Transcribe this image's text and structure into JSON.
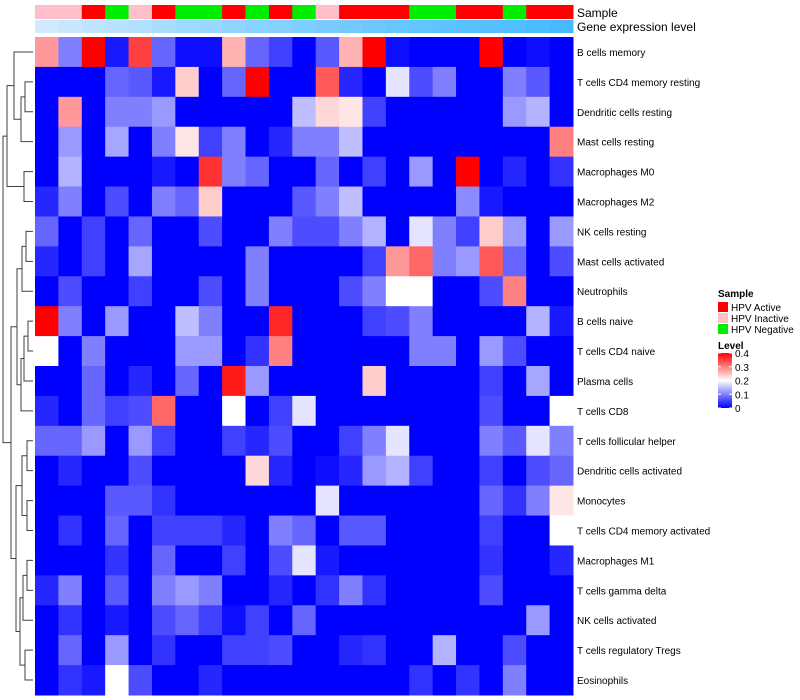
{
  "chart_data": {
    "type": "heatmap",
    "annotation_labels": {
      "sample": "Sample",
      "gene_expression": "Gene expression level"
    },
    "rows": [
      "B cells memory",
      "T cells CD4 memory resting",
      "Dendritic cells resting",
      "Mast cells resting",
      "Macrophages M0",
      "Macrophages M2",
      "NK cells resting",
      "Mast cells activated",
      "Neutrophils",
      "B cells naive",
      "T cells CD4 naive",
      "Plasma cells",
      "T cells CD8",
      "T cells follicular helper",
      "Dendritic cells activated",
      "Monocytes",
      "T cells CD4 memory activated",
      "Macrophages M1",
      "T cells gamma delta",
      "NK cells activated",
      "T cells regulatory  Tregs",
      "Eosinophils"
    ],
    "sample_annotation": [
      "HPV Inactive",
      "HPV Inactive",
      "HPV Active",
      "HPV Negative",
      "HPV Inactive",
      "HPV Active",
      "HPV Negative",
      "HPV Negative",
      "HPV Active",
      "HPV Negative",
      "HPV Active",
      "HPV Negative",
      "HPV Inactive",
      "HPV Active",
      "HPV Active",
      "HPV Active",
      "HPV Negative",
      "HPV Negative",
      "HPV Active",
      "HPV Active",
      "HPV Negative",
      "HPV Active",
      "HPV Active"
    ],
    "gene_expression_annotation": [
      0.08,
      0.14,
      0.2,
      0.24,
      0.28,
      0.34,
      0.4,
      0.44,
      0.5,
      0.54,
      0.58,
      0.62,
      0.66,
      0.7,
      0.74,
      0.78,
      0.8,
      0.83,
      0.86,
      0.89,
      0.92,
      0.96,
      1.0
    ],
    "values": [
      [
        0.28,
        0.1,
        0.4,
        0.02,
        0.35,
        0.08,
        0.01,
        0.01,
        0.26,
        0.08,
        0.05,
        0.0,
        0.07,
        0.26,
        0.4,
        0.01,
        0.0,
        0.0,
        0.0,
        0.4,
        0.0,
        0.01,
        0.0
      ],
      [
        0.0,
        0.0,
        0.0,
        0.08,
        0.07,
        0.02,
        0.24,
        0.0,
        0.08,
        0.4,
        0.0,
        0.0,
        0.33,
        0.03,
        0.0,
        0.18,
        0.06,
        0.1,
        0.0,
        0.0,
        0.1,
        0.07,
        0.0
      ],
      [
        0.0,
        0.28,
        0.0,
        0.1,
        0.1,
        0.12,
        0.0,
        0.0,
        0.0,
        0.0,
        0.0,
        0.15,
        0.23,
        0.22,
        0.05,
        0.0,
        0.0,
        0.0,
        0.0,
        0.0,
        0.12,
        0.14,
        0.0
      ],
      [
        0.0,
        0.12,
        0.0,
        0.13,
        0.0,
        0.1,
        0.22,
        0.05,
        0.1,
        0.0,
        0.03,
        0.1,
        0.1,
        0.15,
        0.0,
        0.0,
        0.0,
        0.0,
        0.0,
        0.0,
        0.0,
        0.0,
        0.3
      ],
      [
        0.0,
        0.14,
        0.0,
        0.0,
        0.0,
        0.02,
        0.0,
        0.36,
        0.1,
        0.08,
        0.0,
        0.0,
        0.08,
        0.0,
        0.05,
        0.0,
        0.12,
        0.0,
        0.4,
        0.0,
        0.03,
        0.0,
        0.04
      ],
      [
        0.03,
        0.1,
        0.0,
        0.06,
        0.0,
        0.1,
        0.08,
        0.24,
        0.0,
        0.0,
        0.0,
        0.07,
        0.1,
        0.15,
        0.0,
        0.0,
        0.0,
        0.0,
        0.11,
        0.02,
        0.0,
        0.0,
        0.0
      ],
      [
        0.08,
        0.0,
        0.05,
        0.0,
        0.08,
        0.0,
        0.0,
        0.06,
        0.0,
        0.0,
        0.1,
        0.06,
        0.06,
        0.1,
        0.14,
        0.0,
        0.18,
        0.1,
        0.05,
        0.24,
        0.12,
        0.0,
        0.12
      ],
      [
        0.03,
        0.0,
        0.05,
        0.0,
        0.13,
        0.0,
        0.0,
        0.0,
        0.0,
        0.1,
        0.0,
        0.0,
        0.0,
        0.0,
        0.05,
        0.28,
        0.32,
        0.1,
        0.12,
        0.33,
        0.08,
        0.0,
        0.06
      ],
      [
        0.0,
        0.06,
        0.0,
        0.0,
        0.05,
        0.0,
        0.0,
        0.06,
        0.0,
        0.1,
        0.0,
        0.0,
        0.0,
        0.06,
        0.1,
        0.2,
        0.2,
        0.0,
        0.0,
        0.06,
        0.3,
        0.0,
        0.0
      ],
      [
        0.4,
        0.1,
        0.0,
        0.12,
        0.0,
        0.0,
        0.15,
        0.1,
        0.0,
        0.0,
        0.37,
        0.0,
        0.0,
        0.0,
        0.05,
        0.06,
        0.1,
        0.0,
        0.0,
        0.0,
        0.0,
        0.14,
        0.02
      ],
      [
        0.2,
        0.0,
        0.1,
        0.0,
        0.0,
        0.0,
        0.12,
        0.12,
        0.0,
        0.04,
        0.3,
        0.0,
        0.0,
        0.0,
        0.0,
        0.0,
        0.1,
        0.1,
        0.0,
        0.12,
        0.06,
        0.0,
        0.0
      ],
      [
        0.0,
        0.0,
        0.08,
        0.0,
        0.03,
        0.0,
        0.08,
        0.0,
        0.38,
        0.12,
        0.0,
        0.0,
        0.0,
        0.0,
        0.24,
        0.0,
        0.0,
        0.0,
        0.0,
        0.05,
        0.0,
        0.13,
        0.0
      ],
      [
        0.03,
        0.0,
        0.08,
        0.05,
        0.06,
        0.32,
        0.0,
        0.0,
        0.2,
        0.0,
        0.05,
        0.18,
        0.0,
        0.0,
        0.0,
        0.0,
        0.0,
        0.0,
        0.0,
        0.06,
        0.0,
        0.0,
        0.2
      ],
      [
        0.08,
        0.08,
        0.12,
        0.0,
        0.12,
        0.05,
        0.0,
        0.0,
        0.05,
        0.03,
        0.06,
        0.0,
        0.0,
        0.05,
        0.1,
        0.18,
        0.0,
        0.0,
        0.0,
        0.1,
        0.07,
        0.18,
        0.1
      ],
      [
        0.0,
        0.03,
        0.0,
        0.0,
        0.06,
        0.0,
        0.0,
        0.0,
        0.0,
        0.23,
        0.03,
        0.0,
        0.01,
        0.03,
        0.12,
        0.14,
        0.05,
        0.0,
        0.0,
        0.05,
        0.0,
        0.06,
        0.08
      ],
      [
        0.0,
        0.0,
        0.0,
        0.07,
        0.07,
        0.04,
        0.0,
        0.0,
        0.0,
        0.0,
        0.0,
        0.0,
        0.18,
        0.0,
        0.0,
        0.0,
        0.0,
        0.0,
        0.0,
        0.08,
        0.04,
        0.1,
        0.22
      ],
      [
        0.0,
        0.04,
        0.0,
        0.08,
        0.0,
        0.05,
        0.05,
        0.05,
        0.03,
        0.0,
        0.1,
        0.08,
        0.0,
        0.07,
        0.07,
        0.0,
        0.0,
        0.0,
        0.0,
        0.05,
        0.0,
        0.0,
        0.2
      ],
      [
        0.0,
        0.0,
        0.0,
        0.04,
        0.0,
        0.08,
        0.0,
        0.0,
        0.05,
        0.0,
        0.06,
        0.18,
        0.02,
        0.0,
        0.0,
        0.0,
        0.0,
        0.0,
        0.0,
        0.04,
        0.0,
        0.0,
        0.03
      ],
      [
        0.03,
        0.1,
        0.0,
        0.07,
        0.0,
        0.1,
        0.12,
        0.1,
        0.0,
        0.0,
        0.03,
        0.0,
        0.04,
        0.1,
        0.04,
        0.0,
        0.0,
        0.0,
        0.0,
        0.06,
        0.0,
        0.0,
        0.0
      ],
      [
        0.0,
        0.04,
        0.0,
        0.02,
        0.0,
        0.06,
        0.08,
        0.05,
        0.01,
        0.05,
        0.0,
        0.08,
        0.0,
        0.0,
        0.0,
        0.0,
        0.0,
        0.0,
        0.0,
        0.0,
        0.0,
        0.12,
        0.0
      ],
      [
        0.0,
        0.08,
        0.0,
        0.12,
        0.0,
        0.04,
        0.0,
        0.0,
        0.05,
        0.05,
        0.06,
        0.0,
        0.0,
        0.03,
        0.04,
        0.0,
        0.0,
        0.14,
        0.0,
        0.0,
        0.06,
        0.0,
        0.0
      ],
      [
        0.0,
        0.04,
        0.02,
        0.2,
        0.06,
        0.0,
        0.0,
        0.03,
        0.0,
        0.0,
        0.0,
        0.0,
        0.0,
        0.0,
        0.0,
        0.0,
        0.04,
        0.0,
        0.04,
        0.0,
        0.1,
        0.0,
        0.0
      ]
    ],
    "legend": {
      "sample": {
        "title": "Sample",
        "items": [
          {
            "label": "HPV Active",
            "color": "#ff0000"
          },
          {
            "label": "HPV Inactive",
            "color": "#ffc0cb"
          },
          {
            "label": "HPV Negative",
            "color": "#00ee00"
          }
        ]
      },
      "level": {
        "title": "Level",
        "range": [
          0,
          0.4
        ],
        "ticks": [
          {
            "value": 0.4,
            "label": "0.4"
          },
          {
            "value": 0.3,
            "label": "0.3"
          },
          {
            "value": 0.2,
            "label": "0.2"
          },
          {
            "value": 0.1,
            "label": "0.1"
          },
          {
            "value": 0,
            "label": "0"
          }
        ]
      }
    },
    "colors": {
      "low": "#0000ff",
      "mid": "#ffffff",
      "high": "#ff0000",
      "gene_light": "#ddeeff",
      "gene_dark": "#44bbff",
      "dendrogram": "#404040"
    }
  }
}
